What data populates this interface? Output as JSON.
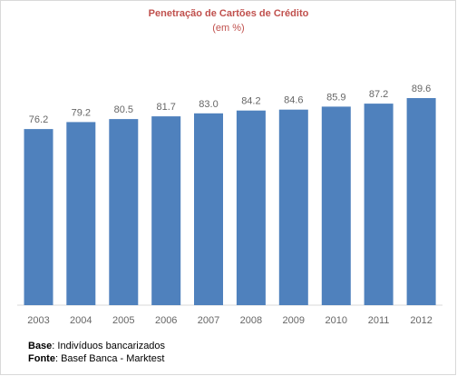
{
  "chart_data": {
    "type": "bar",
    "title": "Penetração de Cartões de Crédito",
    "subtitle": "(em %)",
    "categories": [
      "2003",
      "2004",
      "2005",
      "2006",
      "2007",
      "2008",
      "2009",
      "2010",
      "2011",
      "2012"
    ],
    "values": [
      76.2,
      79.2,
      80.5,
      81.7,
      83.0,
      84.2,
      84.6,
      85.9,
      87.2,
      89.6
    ],
    "value_labels": [
      "76.2",
      "79.2",
      "80.5",
      "81.7",
      "83.0",
      "84.2",
      "84.6",
      "85.9",
      "87.2",
      "89.6"
    ],
    "bar_color": "#4f81bd",
    "grid": false,
    "legend": "none"
  },
  "notes": {
    "base_label": "Base",
    "base_text": ": Indivíduos bancarizados",
    "source_label": "Fonte",
    "source_text": ": Basef Banca - Marktest"
  }
}
